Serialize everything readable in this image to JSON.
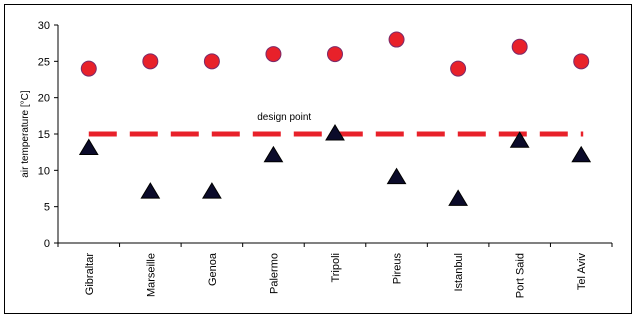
{
  "chart_data": {
    "type": "scatter",
    "title": "",
    "xlabel": "",
    "ylabel": "air temperature  [°C]",
    "ylim": [
      0,
      30
    ],
    "yticks": [
      0,
      5,
      10,
      15,
      20,
      25,
      30
    ],
    "grid": false,
    "legend": "none",
    "categories": [
      "Gibraltar",
      "Marseille",
      "Genoa",
      "Palermo",
      "Tripoli",
      "Pireus",
      "Istanbul",
      "Port Said",
      "Tel Aviv"
    ],
    "series": [
      {
        "marker": "circle",
        "color": "#e8212a",
        "values": [
          24,
          25,
          25,
          26,
          26,
          28,
          24,
          27,
          25
        ]
      },
      {
        "marker": "triangle",
        "color": "#0b0b2a",
        "values": [
          13,
          7,
          7,
          12,
          15,
          9,
          6,
          14,
          12
        ]
      }
    ],
    "reference_line": {
      "value": 15,
      "color": "#e8212a",
      "style": "dashed",
      "label": "design point"
    }
  }
}
